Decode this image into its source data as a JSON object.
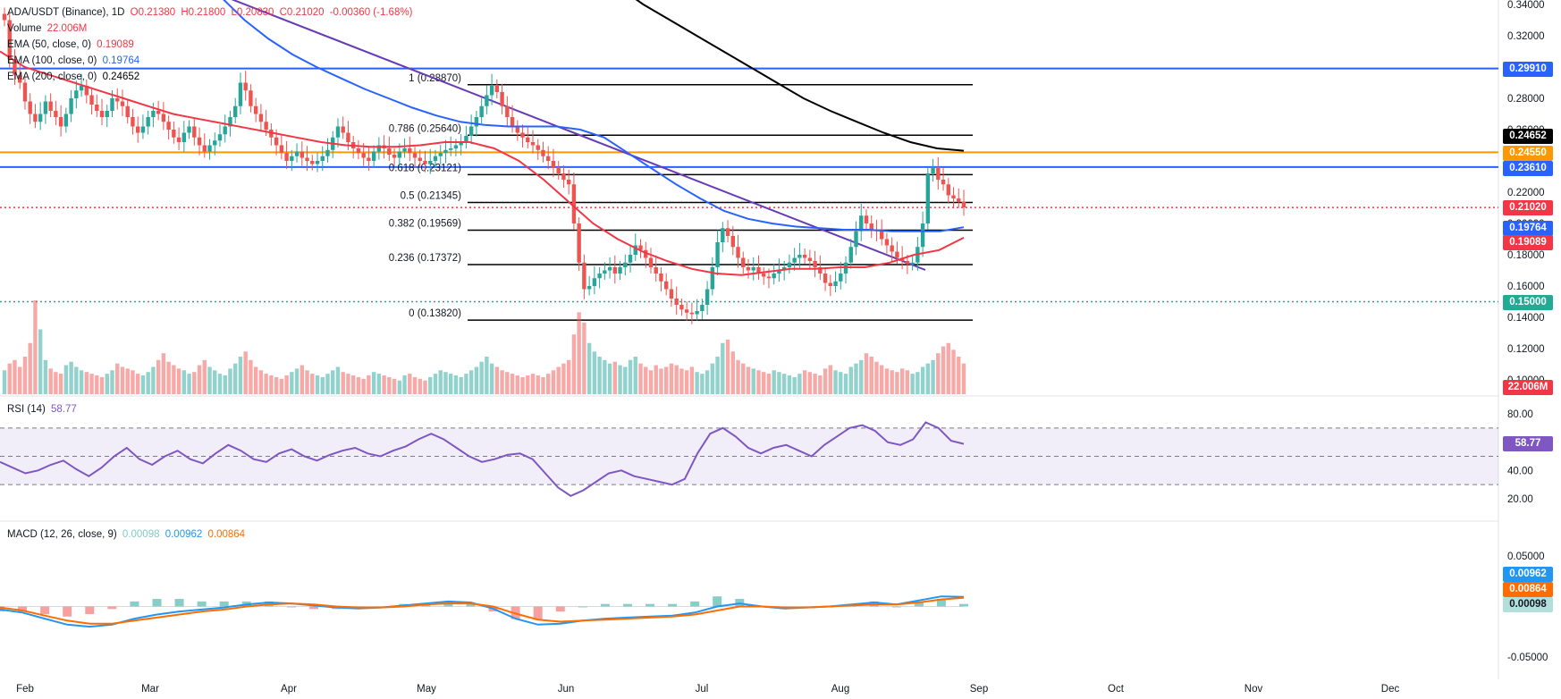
{
  "header": {
    "symbol": "ADA/USDT (Binance), 1D",
    "open": "O0.21380",
    "high": "H0.21800",
    "low": "L0.20830",
    "close": "C0.21020",
    "change": "-0.00360 (-1.68%)",
    "volume_label": "Volume",
    "volume_value": "22.006M",
    "ema50_label": "EMA (50, close, 0)",
    "ema50_value": "0.19089",
    "ema100_label": "EMA (100, close, 0)",
    "ema100_value": "0.19764",
    "ema200_label": "EMA (200, close, 0)",
    "ema200_value": "0.24652"
  },
  "rsi": {
    "label": "RSI (14)",
    "value": "58.77"
  },
  "macd": {
    "label": "MACD (12, 26, close, 9)",
    "hist": "0.00098",
    "macd": "0.00962",
    "signal": "0.00864"
  },
  "badges": {
    "b1": {
      "text": "0.29910",
      "color": "#2962ff"
    },
    "b2": {
      "text": "0.24652",
      "color": "#000000"
    },
    "b3": {
      "text": "0.24550",
      "color": "#ff9800"
    },
    "b4": {
      "text": "0.23610",
      "color": "#2962ff"
    },
    "b5": {
      "text": "0.21020",
      "color": "#f23645"
    },
    "b6": {
      "text": "0.19764",
      "color": "#2962ff"
    },
    "b7": {
      "text": "0.19089",
      "color": "#f23645"
    },
    "b8": {
      "text": "0.15000",
      "color": "#22ab94"
    },
    "b9": {
      "text": "22.006M",
      "color": "#f23645"
    },
    "b10": {
      "text": "58.77",
      "color": "#7e57c2"
    },
    "b11": {
      "text": "0.00962",
      "color": "#2196f3"
    },
    "b12": {
      "text": "0.00864",
      "color": "#ff6d00"
    },
    "b13": {
      "text": "0.00098",
      "color": "#b2dfdb"
    }
  },
  "chart_data": {
    "type": "line",
    "title": "ADA/USDT (Binance), 1D",
    "x_axis_labels": [
      "Feb",
      "Mar",
      "Apr",
      "May",
      "Jun",
      "Jul",
      "Aug",
      "Sep",
      "Oct",
      "Nov",
      "Dec"
    ],
    "price_axis_ticks": [
      "0.34000",
      "0.32000",
      "0.30000",
      "0.28000",
      "0.26000",
      "0.24000",
      "0.22000",
      "0.20000",
      "0.18000",
      "0.16000",
      "0.14000",
      "0.12000",
      "0.10000"
    ],
    "rsi_axis_ticks": [
      "80.00",
      "60.00",
      "40.00",
      "20.00"
    ],
    "macd_axis_ticks": [
      "0.05000",
      "-0.05000"
    ],
    "ylim": [
      0.09,
      0.345
    ],
    "horizontal_levels": [
      {
        "value": 0.2991,
        "color": "#2962ff",
        "style": "solid"
      },
      {
        "value": 0.2455,
        "color": "#ff9800",
        "style": "solid"
      },
      {
        "value": 0.2361,
        "color": "#2962ff",
        "style": "solid"
      },
      {
        "value": 0.15,
        "color": "#22ab94",
        "style": "dotted"
      },
      {
        "value": 0.2102,
        "color": "#f23645",
        "style": "dotted"
      }
    ],
    "fibonacci": [
      {
        "label": "1 (0.28870)",
        "value": 0.2887
      },
      {
        "label": "0.786 (0.25640)",
        "value": 0.2564
      },
      {
        "label": "0.618 (0.23121)",
        "value": 0.23121
      },
      {
        "label": "0.5 (0.21345)",
        "value": 0.21345
      },
      {
        "label": "0.382 (0.19569)",
        "value": 0.19569
      },
      {
        "label": "0.236 (0.17372)",
        "value": 0.17372
      },
      {
        "label": "0 (0.13820)",
        "value": 0.1382
      }
    ],
    "close_series": [
      0.33,
      0.305,
      0.295,
      0.29,
      0.278,
      0.27,
      0.265,
      0.27,
      0.278,
      0.272,
      0.268,
      0.262,
      0.27,
      0.28,
      0.285,
      0.288,
      0.282,
      0.276,
      0.272,
      0.268,
      0.272,
      0.28,
      0.278,
      0.275,
      0.268,
      0.262,
      0.258,
      0.262,
      0.268,
      0.272,
      0.27,
      0.265,
      0.26,
      0.255,
      0.252,
      0.258,
      0.262,
      0.255,
      0.25,
      0.246,
      0.25,
      0.253,
      0.257,
      0.262,
      0.268,
      0.275,
      0.29,
      0.285,
      0.275,
      0.27,
      0.265,
      0.26,
      0.255,
      0.25,
      0.245,
      0.24,
      0.243,
      0.246,
      0.242,
      0.24,
      0.238,
      0.24,
      0.243,
      0.247,
      0.255,
      0.262,
      0.258,
      0.252,
      0.248,
      0.245,
      0.242,
      0.24,
      0.246,
      0.25,
      0.248,
      0.244,
      0.242,
      0.246,
      0.248,
      0.245,
      0.242,
      0.24,
      0.238,
      0.24,
      0.243,
      0.245,
      0.247,
      0.248,
      0.25,
      0.252,
      0.256,
      0.262,
      0.268,
      0.275,
      0.282,
      0.288,
      0.284,
      0.275,
      0.268,
      0.262,
      0.258,
      0.255,
      0.252,
      0.25,
      0.247,
      0.243,
      0.24,
      0.236,
      0.232,
      0.228,
      0.225,
      0.2,
      0.175,
      0.158,
      0.16,
      0.165,
      0.168,
      0.17,
      0.172,
      0.168,
      0.172,
      0.175,
      0.18,
      0.186,
      0.183,
      0.178,
      0.172,
      0.168,
      0.163,
      0.158,
      0.152,
      0.148,
      0.145,
      0.143,
      0.142,
      0.144,
      0.148,
      0.158,
      0.172,
      0.188,
      0.197,
      0.192,
      0.185,
      0.178,
      0.172,
      0.17,
      0.172,
      0.168,
      0.166,
      0.165,
      0.168,
      0.17,
      0.172,
      0.175,
      0.178,
      0.18,
      0.178,
      0.176,
      0.172,
      0.168,
      0.162,
      0.16,
      0.163,
      0.168,
      0.175,
      0.185,
      0.195,
      0.205,
      0.2,
      0.196,
      0.195,
      0.19,
      0.186,
      0.182,
      0.178,
      0.176,
      0.174,
      0.175,
      0.185,
      0.2,
      0.232,
      0.236,
      0.228,
      0.225,
      0.218,
      0.216,
      0.214,
      0.2102
    ],
    "volume_series_M": [
      14,
      18,
      20,
      16,
      22,
      30,
      55,
      38,
      20,
      15,
      13,
      12,
      17,
      19,
      16,
      14,
      13,
      12,
      11,
      10,
      12,
      14,
      18,
      16,
      15,
      14,
      12,
      11,
      13,
      16,
      20,
      24,
      19,
      17,
      15,
      14,
      12,
      13,
      17,
      20,
      16,
      14,
      12,
      11,
      15,
      18,
      22,
      25,
      20,
      16,
      14,
      12,
      11,
      10,
      9,
      11,
      13,
      15,
      17,
      14,
      12,
      11,
      10,
      12,
      14,
      16,
      13,
      12,
      11,
      10,
      9,
      11,
      13,
      12,
      11,
      10,
      9,
      8,
      11,
      12,
      10,
      9,
      8,
      10,
      12,
      14,
      13,
      12,
      11,
      10,
      12,
      14,
      16,
      19,
      22,
      18,
      16,
      14,
      13,
      12,
      11,
      10,
      11,
      12,
      11,
      10,
      12,
      14,
      16,
      18,
      20,
      35,
      48,
      42,
      30,
      25,
      22,
      20,
      18,
      19,
      17,
      16,
      20,
      22,
      18,
      16,
      14,
      17,
      15,
      16,
      18,
      17,
      15,
      14,
      16,
      13,
      12,
      14,
      18,
      22,
      30,
      32,
      25,
      20,
      18,
      16,
      15,
      14,
      13,
      12,
      14,
      13,
      12,
      11,
      10,
      12,
      14,
      13,
      12,
      11,
      15,
      17,
      14,
      13,
      12,
      16,
      18,
      20,
      24,
      22,
      19,
      17,
      15,
      14,
      13,
      15,
      14,
      12,
      13,
      16,
      18,
      20,
      24,
      28,
      30,
      26,
      22,
      18,
      20,
      16,
      14,
      12,
      8,
      5
    ],
    "ema50": [
      0.31,
      0.3,
      0.295,
      0.29,
      0.285,
      0.28,
      0.275,
      0.27,
      0.267,
      0.264,
      0.261,
      0.258,
      0.255,
      0.252,
      0.25,
      0.249,
      0.249,
      0.25,
      0.252,
      0.252,
      0.248,
      0.24,
      0.228,
      0.214,
      0.2,
      0.19,
      0.182,
      0.176,
      0.171,
      0.168,
      0.167,
      0.169,
      0.171,
      0.171,
      0.172,
      0.172,
      0.175,
      0.18,
      0.183,
      0.1909
    ],
    "ema100": [
      0.36,
      0.345,
      0.33,
      0.318,
      0.308,
      0.3,
      0.293,
      0.286,
      0.28,
      0.274,
      0.269,
      0.265,
      0.263,
      0.262,
      0.262,
      0.262,
      0.26,
      0.255,
      0.245,
      0.235,
      0.225,
      0.216,
      0.208,
      0.203,
      0.2,
      0.198,
      0.197,
      0.196,
      0.196,
      0.195,
      0.195,
      0.195,
      0.1976
    ],
    "ema200": [
      0.38,
      0.365,
      0.352,
      0.34,
      0.33,
      0.32,
      0.31,
      0.3,
      0.29,
      0.28,
      0.272,
      0.265,
      0.258,
      0.252,
      0.248,
      0.2465
    ],
    "rsi_series": [
      46,
      42,
      38,
      40,
      44,
      47,
      41,
      36,
      42,
      50,
      56,
      48,
      44,
      50,
      54,
      48,
      45,
      52,
      58,
      54,
      48,
      46,
      52,
      55,
      50,
      47,
      51,
      54,
      56,
      52,
      50,
      54,
      57,
      62,
      66,
      62,
      56,
      50,
      46,
      48,
      51,
      52,
      48,
      38,
      28,
      22,
      26,
      32,
      38,
      40,
      36,
      34,
      32,
      30,
      34,
      52,
      66,
      70,
      64,
      56,
      52,
      56,
      58,
      54,
      50,
      58,
      64,
      70,
      72,
      68,
      60,
      58,
      62,
      74,
      70,
      61,
      58.77
    ],
    "macd_line": [
      -0.003,
      -0.006,
      -0.012,
      -0.018,
      -0.02,
      -0.018,
      -0.012,
      -0.008,
      -0.005,
      -0.003,
      -0.001,
      0.002,
      0.004,
      0.003,
      0.001,
      -0.001,
      -0.002,
      -0.001,
      0.001,
      0.003,
      0.005,
      0.004,
      -0.002,
      -0.012,
      -0.018,
      -0.017,
      -0.014,
      -0.012,
      -0.011,
      -0.01,
      -0.009,
      -0.006,
      0.0,
      0.003,
      0.0,
      -0.002,
      -0.001,
      0.0,
      0.002,
      0.004,
      0.002,
      0.006,
      0.01,
      0.0096
    ],
    "macd_signal": [
      -0.001,
      -0.004,
      -0.009,
      -0.014,
      -0.017,
      -0.017,
      -0.014,
      -0.011,
      -0.008,
      -0.005,
      -0.003,
      0.0,
      0.002,
      0.003,
      0.002,
      0.0,
      -0.001,
      -0.001,
      0.0,
      0.002,
      0.003,
      0.003,
      0.0,
      -0.007,
      -0.013,
      -0.015,
      -0.014,
      -0.013,
      -0.012,
      -0.011,
      -0.01,
      -0.008,
      -0.004,
      0.0,
      0.0,
      -0.001,
      -0.001,
      0.0,
      0.001,
      0.002,
      0.002,
      0.004,
      0.007,
      0.0086
    ]
  }
}
